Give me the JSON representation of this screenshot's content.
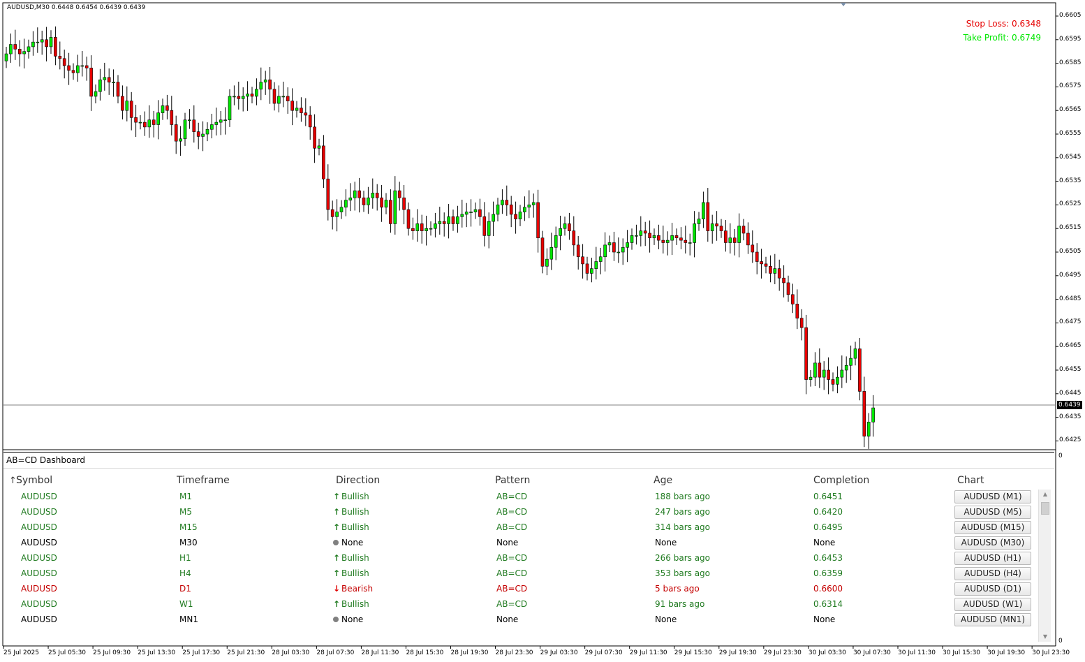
{
  "chart": {
    "header": "AUDUSD,M30  0.6448 0.6454 0.6439 0.6439",
    "stop_loss": "Stop Loss: 0.6348",
    "take_profit": "Take Profit: 0.6749",
    "current_price": "0.6439",
    "colors": {
      "bull": "#00e600",
      "bear": "#e60000",
      "stop_loss": "#e60000",
      "take_profit": "#00e600"
    },
    "price_axis": [
      "0.6605",
      "0.6595",
      "0.6585",
      "0.6575",
      "0.6565",
      "0.6555",
      "0.6545",
      "0.6535",
      "0.6525",
      "0.6515",
      "0.6505",
      "0.6495",
      "0.6485",
      "0.6475",
      "0.6465",
      "0.6455",
      "0.6445",
      "0.6435",
      "0.6425"
    ],
    "indicator_axis": [
      "0",
      "0"
    ],
    "time_axis": [
      "25 Jul 2025",
      "25 Jul 05:30",
      "25 Jul 09:30",
      "25 Jul 13:30",
      "25 Jul 17:30",
      "25 Jul 21:30",
      "28 Jul 03:30",
      "28 Jul 07:30",
      "28 Jul 11:30",
      "28 Jul 15:30",
      "28 Jul 19:30",
      "28 Jul 23:30",
      "29 Jul 03:30",
      "29 Jul 07:30",
      "29 Jul 11:30",
      "29 Jul 15:30",
      "29 Jul 19:30",
      "29 Jul 23:30",
      "30 Jul 03:30",
      "30 Jul 07:30",
      "30 Jul 11:30",
      "30 Jul 15:30",
      "30 Jul 19:30",
      "30 Jul 23:30"
    ],
    "candle_closes": [
      0.6589,
      0.6593,
      0.6591,
      0.6589,
      0.659,
      0.6592,
      0.6594,
      0.6594,
      0.6595,
      0.6592,
      0.6596,
      0.6588,
      0.6587,
      0.6584,
      0.6582,
      0.6581,
      0.6584,
      0.6584,
      0.6583,
      0.6571,
      0.6573,
      0.6578,
      0.6579,
      0.6577,
      0.6577,
      0.6571,
      0.6565,
      0.6569,
      0.6562,
      0.656,
      0.656,
      0.6558,
      0.6561,
      0.6559,
      0.6564,
      0.6567,
      0.6565,
      0.6559,
      0.6552,
      0.6553,
      0.6561,
      0.6561,
      0.6556,
      0.6554,
      0.6555,
      0.6557,
      0.6559,
      0.656,
      0.6561,
      0.6561,
      0.6571,
      0.6571,
      0.657,
      0.6571,
      0.6572,
      0.6571,
      0.6574,
      0.6577,
      0.6578,
      0.6574,
      0.6568,
      0.6571,
      0.6571,
      0.6569,
      0.6565,
      0.6566,
      0.6564,
      0.6563,
      0.6558,
      0.6549,
      0.655,
      0.6536,
      0.6523,
      0.652,
      0.6522,
      0.6524,
      0.6527,
      0.6528,
      0.6531,
      0.6528,
      0.6525,
      0.6528,
      0.653,
      0.6528,
      0.6524,
      0.6527,
      0.6517,
      0.6531,
      0.6528,
      0.6523,
      0.6515,
      0.6514,
      0.6517,
      0.6514,
      0.6515,
      0.6515,
      0.6517,
      0.6518,
      0.6517,
      0.652,
      0.6517,
      0.652,
      0.6521,
      0.6522,
      0.6522,
      0.6523,
      0.652,
      0.6512,
      0.6518,
      0.6521,
      0.6525,
      0.6527,
      0.6525,
      0.6521,
      0.6519,
      0.6522,
      0.6524,
      0.6525,
      0.6526,
      0.6511,
      0.6499,
      0.6502,
      0.6507,
      0.6512,
      0.6515,
      0.6517,
      0.6514,
      0.6508,
      0.6503,
      0.65,
      0.6496,
      0.6498,
      0.6501,
      0.6503,
      0.6508,
      0.6509,
      0.6505,
      0.6505,
      0.6507,
      0.6509,
      0.6512,
      0.6512,
      0.6514,
      0.6513,
      0.6511,
      0.6512,
      0.651,
      0.6509,
      0.651,
      0.6512,
      0.6511,
      0.651,
      0.6509,
      0.6509,
      0.6517,
      0.6519,
      0.6526,
      0.6514,
      0.6517,
      0.6516,
      0.6514,
      0.6509,
      0.6511,
      0.6509,
      0.6516,
      0.6513,
      0.6508,
      0.6505,
      0.6501,
      0.65,
      0.6499,
      0.6496,
      0.6498,
      0.6494,
      0.6492,
      0.6487,
      0.6483,
      0.6477,
      0.6473,
      0.6451,
      0.6452,
      0.6458,
      0.6452,
      0.6455,
      0.6451,
      0.6449,
      0.6452,
      0.6455,
      0.6457,
      0.646,
      0.6464,
      0.6446,
      0.6427,
      0.6433,
      0.6439
    ]
  },
  "dashboard": {
    "title": "AB=CD Dashboard",
    "headers": {
      "symbol": "Symbol",
      "timeframe": "Timeframe",
      "direction": "Direction",
      "pattern": "Pattern",
      "age": "Age",
      "completion": "Completion",
      "chart": "Chart"
    },
    "colors": {
      "bullish": "#1f7a1f",
      "bearish": "#c40000",
      "none": "#000000"
    },
    "rows": [
      {
        "symbol": "AUDUSD",
        "timeframe": "M1",
        "direction": "Bullish",
        "state": "bullish",
        "icon": "up-arrow-icon",
        "pattern": "AB=CD",
        "age": "188 bars ago",
        "completion": "0.6451",
        "chart": "AUDUSD (M1)"
      },
      {
        "symbol": "AUDUSD",
        "timeframe": "M5",
        "direction": "Bullish",
        "state": "bullish",
        "icon": "up-arrow-icon",
        "pattern": "AB=CD",
        "age": "247 bars ago",
        "completion": "0.6420",
        "chart": "AUDUSD (M5)"
      },
      {
        "symbol": "AUDUSD",
        "timeframe": "M15",
        "direction": "Bullish",
        "state": "bullish",
        "icon": "up-arrow-icon",
        "pattern": "AB=CD",
        "age": "314 bars ago",
        "completion": "0.6495",
        "chart": "AUDUSD (M15)"
      },
      {
        "symbol": "AUDUSD",
        "timeframe": "M30",
        "direction": "None",
        "state": "none",
        "icon": "dot-icon",
        "pattern": "None",
        "age": "None",
        "completion": "None",
        "chart": "AUDUSD (M30)"
      },
      {
        "symbol": "AUDUSD",
        "timeframe": "H1",
        "direction": "Bullish",
        "state": "bullish",
        "icon": "up-arrow-icon",
        "pattern": "AB=CD",
        "age": "266 bars ago",
        "completion": "0.6453",
        "chart": "AUDUSD (H1)"
      },
      {
        "symbol": "AUDUSD",
        "timeframe": "H4",
        "direction": "Bullish",
        "state": "bullish",
        "icon": "up-arrow-icon",
        "pattern": "AB=CD",
        "age": "353 bars ago",
        "completion": "0.6359",
        "chart": "AUDUSD (H4)"
      },
      {
        "symbol": "AUDUSD",
        "timeframe": "D1",
        "direction": "Bearish",
        "state": "bearish",
        "icon": "down-arrow-icon",
        "pattern": "AB=CD",
        "age": "5 bars ago",
        "completion": "0.6600",
        "chart": "AUDUSD (D1)"
      },
      {
        "symbol": "AUDUSD",
        "timeframe": "W1",
        "direction": "Bullish",
        "state": "bullish",
        "icon": "up-arrow-icon",
        "pattern": "AB=CD",
        "age": "91 bars ago",
        "completion": "0.6314",
        "chart": "AUDUSD (W1)"
      },
      {
        "symbol": "AUDUSD",
        "timeframe": "MN1",
        "direction": "None",
        "state": "none",
        "icon": "dot-icon",
        "pattern": "None",
        "age": "None",
        "completion": "None",
        "chart": "AUDUSD (MN1)"
      }
    ]
  }
}
